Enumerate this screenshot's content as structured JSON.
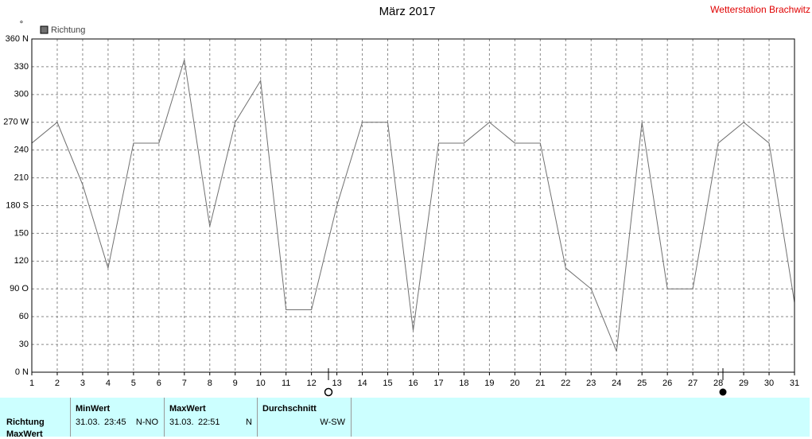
{
  "chart_data": {
    "type": "line",
    "title": "März 2017",
    "station": "Wetterstation Brachwitz",
    "y_unit": "°",
    "x": [
      1,
      2,
      3,
      4,
      5,
      6,
      7,
      8,
      9,
      10,
      11,
      12,
      13,
      14,
      15,
      16,
      17,
      18,
      19,
      20,
      21,
      22,
      23,
      24,
      25,
      26,
      27,
      28,
      29,
      30,
      31
    ],
    "series": [
      {
        "name": "Richtung",
        "color": "#707070",
        "values": [
          247.5,
          270,
          202.5,
          112.5,
          247.5,
          247.5,
          337.5,
          157.5,
          270,
          315,
          67.5,
          67.5,
          180,
          270,
          270,
          45,
          247.5,
          247.5,
          270,
          247.5,
          247.5,
          112.5,
          90,
          22.5,
          270,
          90,
          90,
          247.5,
          270,
          247.5,
          75
        ]
      }
    ],
    "xlim": [
      1,
      31
    ],
    "xticks": [
      1,
      2,
      3,
      4,
      5,
      6,
      7,
      8,
      9,
      10,
      11,
      12,
      13,
      14,
      15,
      16,
      17,
      18,
      19,
      20,
      21,
      22,
      23,
      24,
      25,
      26,
      27,
      28,
      29,
      30,
      31
    ],
    "ylim": [
      0,
      360
    ],
    "yticks": [
      {
        "value": 0,
        "label": "0  N"
      },
      30,
      60,
      {
        "value": 90,
        "label": "90  O"
      },
      120,
      150,
      {
        "value": 180,
        "label": "180 S"
      },
      210,
      240,
      {
        "value": 270,
        "label": "270 W"
      },
      300,
      330,
      {
        "value": 360,
        "label": "360 N"
      }
    ],
    "grid": true
  },
  "table": {
    "row_labels": [
      "Richtung",
      "MaxWert"
    ],
    "columns": [
      {
        "header": "MinWert",
        "date": "31.03.",
        "time": "23:45",
        "value": "N-NO"
      },
      {
        "header": "MaxWert",
        "date": "31.03.",
        "time": "22:51",
        "value": "N"
      },
      {
        "header": "Durchschnitt",
        "value": "W-SW"
      }
    ]
  }
}
